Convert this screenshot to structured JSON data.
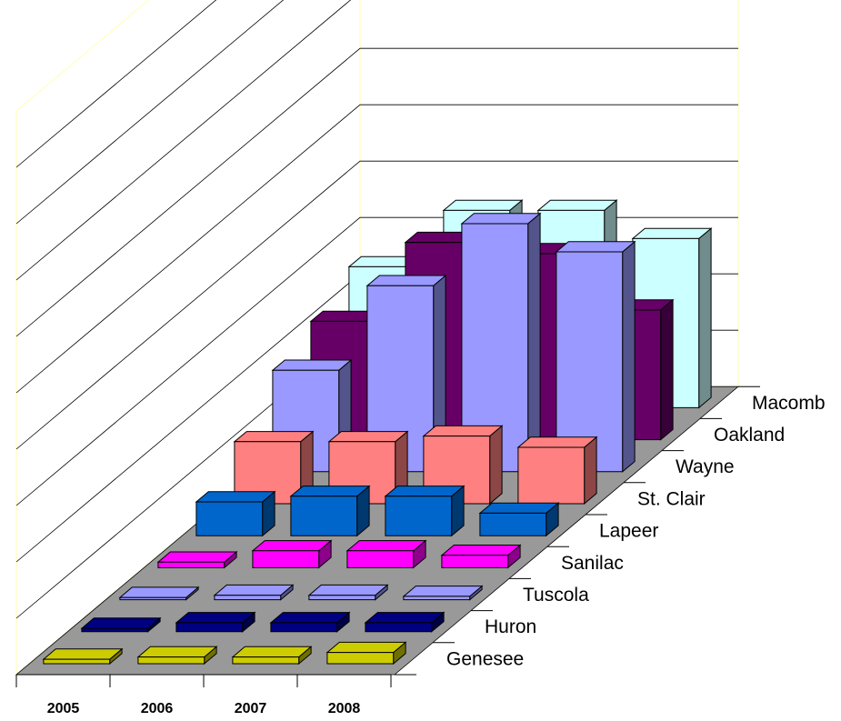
{
  "chart_data": {
    "type": "bar",
    "variant": "3d-column",
    "title": "",
    "xlabel": "",
    "ylabel": "",
    "categories": [
      "2005",
      "2006",
      "2007",
      "2008"
    ],
    "ylim": [
      0,
      10
    ],
    "grid": true,
    "legend": "none",
    "series": [
      {
        "name": "Genesee",
        "color": "#cccc00",
        "values": [
          0.08,
          0.12,
          0.12,
          0.2
        ]
      },
      {
        "name": "Huron",
        "color": "#000080",
        "values": [
          0.06,
          0.16,
          0.16,
          0.16
        ]
      },
      {
        "name": "Tuscola",
        "color": "#9999ff",
        "values": [
          0.04,
          0.08,
          0.08,
          0.06
        ]
      },
      {
        "name": "Sanilac",
        "color": "#ff00ff",
        "values": [
          0.1,
          0.3,
          0.3,
          0.22
        ]
      },
      {
        "name": "Lapeer",
        "color": "#0066cc",
        "values": [
          0.6,
          0.7,
          0.7,
          0.4
        ]
      },
      {
        "name": "St. Clair",
        "color": "#ff8080",
        "values": [
          1.1,
          1.1,
          1.2,
          1.0
        ]
      },
      {
        "name": "Wayne",
        "color": "#9999ff",
        "values": [
          1.8,
          3.3,
          4.4,
          3.9
        ]
      },
      {
        "name": "Oakland",
        "color": "#660066",
        "values": [
          2.1,
          3.5,
          3.3,
          2.3
        ]
      },
      {
        "name": "Macomb",
        "color": "#ccffff",
        "values": [
          2.5,
          3.5,
          3.5,
          3.0
        ]
      }
    ]
  }
}
